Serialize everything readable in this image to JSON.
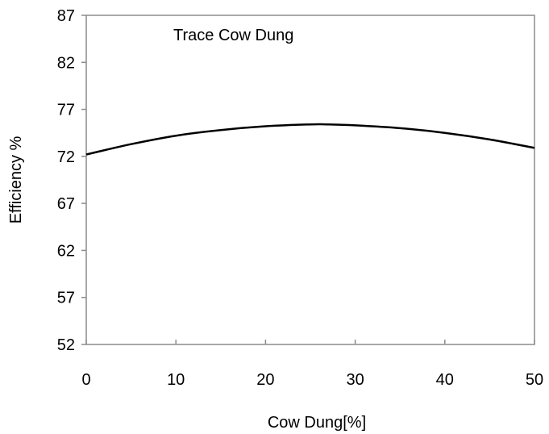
{
  "chart_data": {
    "type": "line",
    "title": "",
    "annotation": "Trace Cow Dung",
    "xlabel": "Cow Dung[%]",
    "ylabel": "Efficiency  %",
    "xlim": [
      0,
      50
    ],
    "ylim": [
      52,
      87
    ],
    "xticks": [
      "0",
      "10",
      "20",
      "30",
      "40",
      "50"
    ],
    "yticks": [
      "52",
      "57",
      "62",
      "67",
      "72",
      "77",
      "82",
      "87"
    ],
    "grid": false,
    "legend": "none",
    "series": [
      {
        "color": "#000000",
        "x": [
          0,
          5,
          10,
          15,
          20,
          25,
          27,
          30,
          35,
          40,
          45,
          50
        ],
        "y": [
          72.2,
          73.3,
          74.2,
          74.8,
          75.2,
          75.4,
          75.4,
          75.3,
          75.0,
          74.5,
          73.8,
          72.9
        ]
      }
    ]
  }
}
